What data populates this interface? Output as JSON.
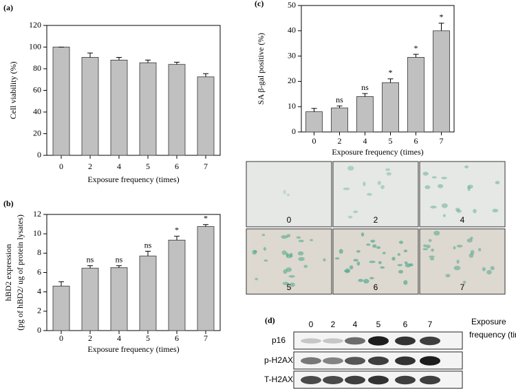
{
  "chart_data": [
    {
      "type": "bar",
      "panel": "(a)",
      "ylabel": [
        "Cell viability (%)"
      ],
      "xlabel": "Exposure frequency (times)",
      "categories": [
        "0",
        "2",
        "4",
        "5",
        "6",
        "7"
      ],
      "values": [
        100,
        90.5,
        88,
        85.5,
        84,
        72.5
      ],
      "errors": [
        0,
        4,
        2.5,
        2.5,
        2,
        3
      ],
      "color": "#c0c0c0",
      "ylim": [
        0,
        120
      ],
      "yticks": [
        0,
        20,
        40,
        60,
        80,
        100,
        120
      ]
    },
    {
      "type": "bar",
      "panel": "(b)",
      "ylabel": [
        "hBD2 expression",
        "(pg of hBD2/ ug of protein lysates)"
      ],
      "xlabel": "Exposure frequency (times)",
      "categories": [
        "0",
        "2",
        "4",
        "5",
        "6",
        "7"
      ],
      "values": [
        4.6,
        6.45,
        6.5,
        7.7,
        9.35,
        10.75
      ],
      "errors": [
        0.45,
        0.25,
        0.2,
        0.5,
        0.4,
        0.2
      ],
      "annotations": [
        null,
        "ns",
        "ns",
        "ns",
        "*",
        "*"
      ],
      "color": "#c0c0c0",
      "ylim": [
        0,
        12
      ],
      "yticks": [
        0,
        2,
        4,
        6,
        8,
        10,
        12
      ]
    },
    {
      "type": "bar",
      "panel": "(c)",
      "ylabel": [
        "SA β-gal positive (%)"
      ],
      "xlabel": "Exposure frequency (times)",
      "categories": [
        "0",
        "2",
        "4",
        "5",
        "6",
        "7"
      ],
      "values": [
        8,
        9.5,
        14,
        19.5,
        29.5,
        40
      ],
      "errors": [
        1.3,
        0.8,
        1.2,
        1.5,
        1.2,
        3
      ],
      "annotations": [
        null,
        "ns",
        "ns",
        "*",
        "*",
        "*"
      ],
      "color": "#c0c0c0",
      "ylim": [
        0,
        50
      ],
      "yticks": [
        0,
        10,
        20,
        30,
        40,
        50
      ]
    }
  ],
  "micrographs": {
    "labels": [
      "0",
      "2",
      "4",
      "5",
      "6",
      "7"
    ]
  },
  "blot": {
    "panel": "(d)",
    "lanes": [
      "0",
      "2",
      "4",
      "5",
      "6",
      "7"
    ],
    "xlabel": [
      "Exposure",
      "frequency (times)"
    ],
    "rows": [
      "p16",
      "p-H2AX",
      "T-H2AX"
    ]
  }
}
